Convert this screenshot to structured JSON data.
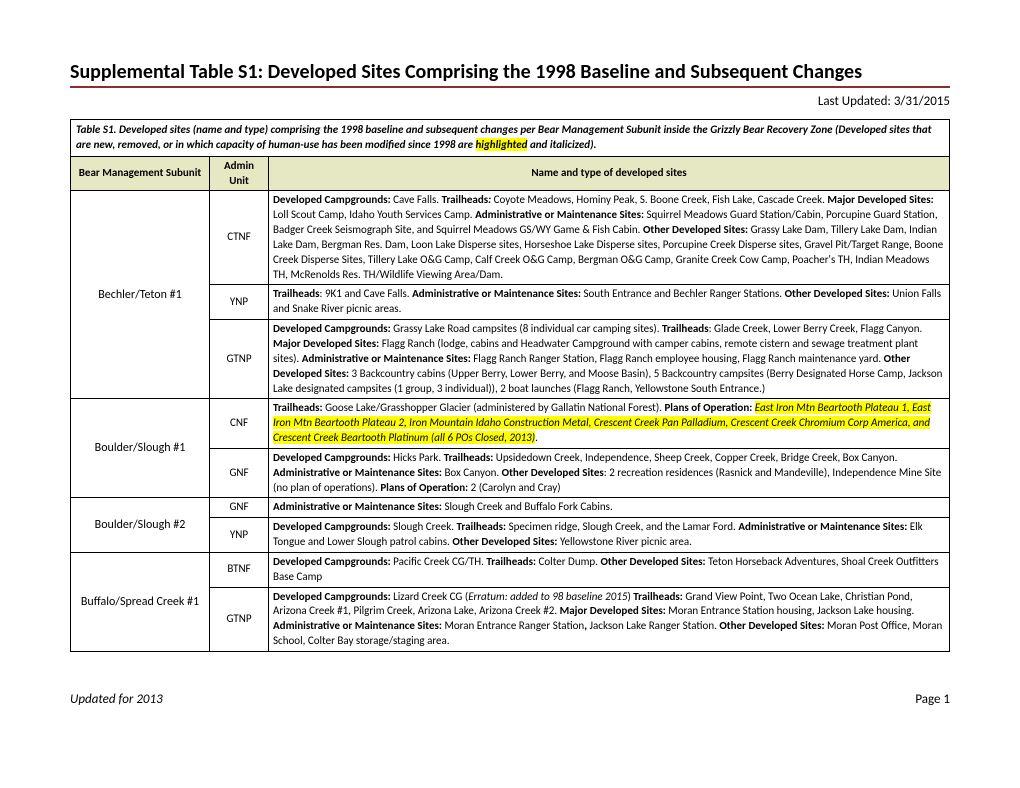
{
  "title": "Supplemental Table S1:  Developed Sites Comprising the 1998 Baseline and Subsequent Changes",
  "last_updated": "Last Updated:  3/31/2015",
  "caption_pre": "Table S1.  Developed sites (name and type) comprising the 1998 baseline and subsequent changes per Bear Management Subunit inside the Grizzly Bear Recovery Zone (Developed sites that are new, removed, or in which capacity of human-use has been modified since 1998 are ",
  "caption_hl": "highlighted",
  "caption_post": " and italicized).",
  "headers": {
    "col1": "Bear Management Subunit",
    "col2": "Admin Unit",
    "col3": "Name and type of developed sites"
  },
  "rows": [
    {
      "subunit": "Bechler/Teton #1",
      "subunit_rowspan": 3,
      "admin": "CTNF",
      "html": "<b>Developed Campgrounds:</b>  Cave Falls.  <b>Trailheads<i>:</i></b>  Coyote Meadows, Hominy Peak, S. Boone Creek, Fish Lake, Cascade Creek.  <b>Major Developed Sites:</b>  Loll Scout Camp, Idaho Youth Services Camp.  <b>Administrative or Maintenance Sites:</b>  Squirrel Meadows Guard Station/Cabin, Porcupine Guard Station, Badger Creek Seismograph Site, and Squirrel Meadows GS/WY Game & Fish Cabin.  <b>Other Developed Sites:</b>  Grassy Lake Dam, Tillery Lake Dam, Indian Lake Dam, Bergman Res. Dam, Loon Lake Disperse sites, Horseshoe Lake Disperse sites, Porcupine Creek Disperse sites, Gravel Pit/Target Range, Boone Creek Disperse Sites, Tillery Lake O&G Camp, Calf Creek O&G Camp, Bergman O&G Camp, Granite Creek Cow Camp, Poacher's TH, Indian Meadows TH, McRenolds Res. TH/Wildlife Viewing Area/Dam."
    },
    {
      "admin": "YNP",
      "html": "<b>Trailheads</b>:  9K1 and Cave Falls.  <b>Administrative or Maintenance Sites:</b>  South Entrance and Bechler Ranger Stations.  <b>Other Developed Sites:</b>  Union Falls and Snake River picnic areas."
    },
    {
      "admin": "GTNP",
      "html": "<b>Developed Campgrounds:</b>  Grassy Lake Road campsites (8 individual car camping sites).  <b>Trailheads</b>: Glade Creek, Lower Berry Creek, Flagg Canyon.  <b>Major Developed Sites:</b>  Flagg Ranch (lodge, cabins and Headwater Campground with camper cabins, remote cistern and sewage treatment plant sites).  <b>Administrative or Maintenance Sites:</b>  Flagg Ranch Ranger Station, Flagg Ranch employee housing, Flagg Ranch maintenance yard. <b>Other Developed Sites:</b>  3 Backcountry cabins (Upper Berry, Lower Berry, and Moose Basin), 5 Backcountry campsites (Berry Designated Horse Camp, Jackson Lake designated campsites (1 group, 3 individual)), 2 boat launches (Flagg Ranch, Yellowstone South Entrance.)"
    },
    {
      "subunit": "Boulder/Slough #1",
      "subunit_rowspan": 2,
      "admin": "CNF",
      "html": "<b>Trailheads:</b>  Goose Lake/Grasshopper Glacier (administered by Gallatin National Forest).  <b>Plans of Operation:</b>  <span class=\"hl\"><i>East Iron Mtn Beartooth Plateau 1, East Iron Mtn Beartooth Plateau 2, Iron Mountain Idaho Construction Metal, Crescent Creek Pan Palladium, Crescent Creek Chromium Corp America, and Crescent Creek Beartooth Platinum (all 6 POs Closed, 2013)</i></span>."
    },
    {
      "admin": "GNF",
      "html": "<b>Developed Campgrounds:</b>  Hicks Park. <b>Trailheads:</b>  Upsidedown Creek, Independence, Sheep Creek, Copper Creek, Bridge Creek, Box Canyon.  <b>Administrative or Maintenance Sites:</b>  Box Canyon.  <b>Other Developed Sites</b>: 2 recreation residences (Rasnick and Mandeville), Independence Mine Site (no plan of operations).  <b>Plans of Operation:</b>  2 (Carolyn and Cray)"
    },
    {
      "subunit": "Boulder/Slough #2",
      "subunit_rowspan": 2,
      "admin": "GNF",
      "html": "<b>Administrative or Maintenance Sites:</b>  Slough Creek and Buffalo Fork Cabins."
    },
    {
      "admin": "YNP",
      "html": "<b>Developed Campgrounds:</b>  Slough Creek.  <b>Trailheads:</b>  Specimen ridge, Slough Creek, and the Lamar Ford. <b>Administrative or Maintenance Sites:</b>  Elk Tongue and Lower Slough patrol cabins.  <b>Other Developed Sites:</b> Yellowstone River picnic area."
    },
    {
      "subunit": "Buffalo/Spread Creek #1",
      "subunit_rowspan": 2,
      "admin": "BTNF",
      "html": "<b>Developed Campgrounds:</b>  Pacific Creek CG/TH.  <b>Trailheads:</b>  Colter Dump. <b>Other Developed Sites:</b>  Teton Horseback Adventures, Shoal Creek Outfitters Base Camp"
    },
    {
      "admin": "GTNP",
      "html": "<b>Developed Campgrounds:</b>  Lizard Creek CG (<i>Erratum: added to 98 baseline 2015</i>) <b>Trailheads:</b>  Grand View Point, Two Ocean Lake, Christian Pond, Arizona Creek #1, Pilgrim Creek, Arizona Lake, Arizona Creek #2.  <b>Major Developed Sites:</b>  Moran Entrance Station housing, Jackson Lake housing. <b>Administrative or Maintenance Sites:</b>  Moran Entrance Ranger Station<b>,</b> Jackson Lake Ranger Station.  <b>Other Developed Sites:</b>  Moran Post Office, Moran School, Colter Bay storage/staging area."
    }
  ],
  "footer_left": "Updated for 2013",
  "footer_right": "Page 1",
  "colors": {
    "underline": "#8b2e2e",
    "header_bg": "#e6e8c4",
    "highlight": "#ffff00"
  }
}
